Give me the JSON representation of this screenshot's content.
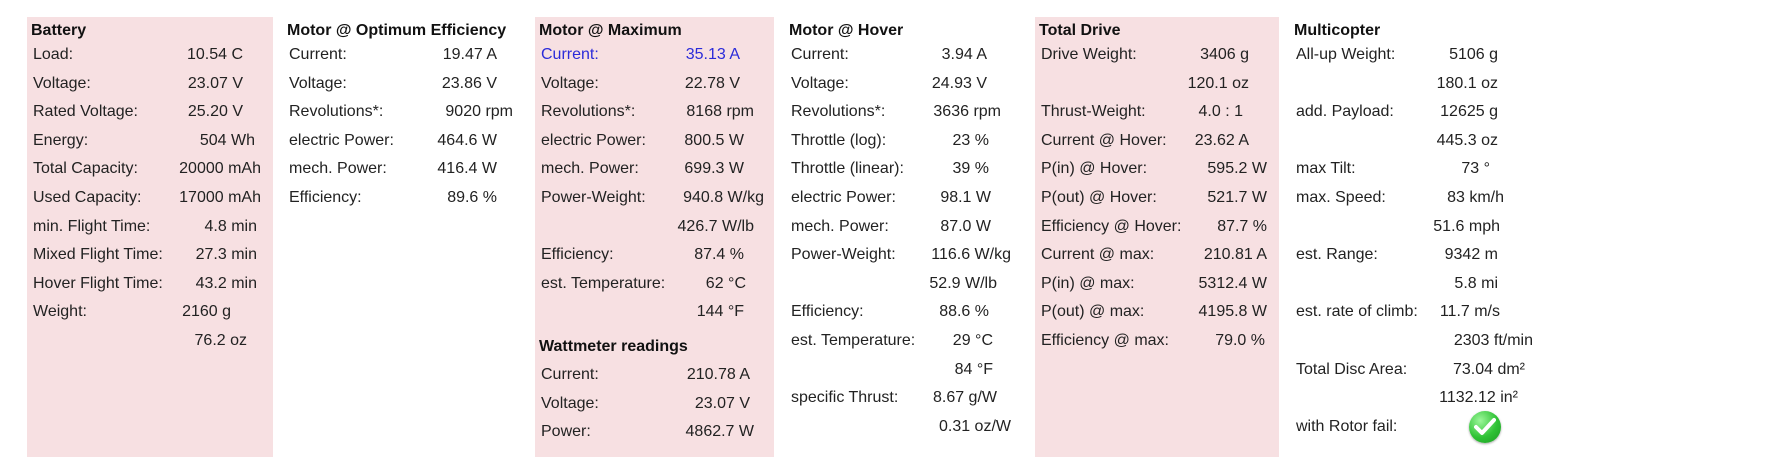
{
  "battery": {
    "title": "Battery",
    "rows": [
      {
        "label": "Load:",
        "value": "10.54 C"
      },
      {
        "label": "Voltage:",
        "value": "23.07 V"
      },
      {
        "label": "Rated Voltage:",
        "value": "25.20 V"
      },
      {
        "label": "Energy:",
        "value": "504 Wh"
      },
      {
        "label": "Total Capacity:",
        "value": "20000 mAh"
      },
      {
        "label": "Used Capacity:",
        "value": "17000 mAh"
      },
      {
        "label": "min. Flight Time:",
        "value": "4.8 min"
      },
      {
        "label": "Mixed Flight Time:",
        "value": "27.3 min"
      },
      {
        "label": "Hover Flight Time:",
        "value": "43.2 min"
      },
      {
        "label": "Weight:",
        "value": "2160 g"
      },
      {
        "label": "",
        "value": "76.2 oz"
      }
    ]
  },
  "motor_optimum": {
    "title": "Motor @ Optimum Efficiency",
    "rows": [
      {
        "label": "Current:",
        "value": "19.47 A"
      },
      {
        "label": "Voltage:",
        "value": "23.86 V"
      },
      {
        "label": "Revolutions*:",
        "value": "9020 rpm"
      },
      {
        "label": "electric Power:",
        "value": "464.6 W"
      },
      {
        "label": "mech. Power:",
        "value": "416.4 W"
      },
      {
        "label": "Efficiency:",
        "value": "89.6 %"
      }
    ]
  },
  "motor_maximum": {
    "title": "Motor @ Maximum",
    "rows": [
      {
        "label": "Current:",
        "value": "35.13 A"
      },
      {
        "label": "Voltage:",
        "value": "22.78 V"
      },
      {
        "label": "Revolutions*:",
        "value": "8168 rpm"
      },
      {
        "label": "electric Power:",
        "value": "800.5 W"
      },
      {
        "label": "mech. Power:",
        "value": "699.3 W"
      },
      {
        "label": "Power-Weight:",
        "value": "940.8 W/kg"
      },
      {
        "label": "",
        "value": "426.7 W/lb"
      },
      {
        "label": "Efficiency:",
        "value": "87.4 %"
      },
      {
        "label": "est. Temperature:",
        "value": "62 °C"
      },
      {
        "label": "",
        "value": "144 °F"
      }
    ],
    "wattmeter": {
      "title": "Wattmeter readings",
      "rows": [
        {
          "label": "Current:",
          "value": "210.78 A"
        },
        {
          "label": "Voltage:",
          "value": "23.07 V"
        },
        {
          "label": "Power:",
          "value": "4862.7 W"
        }
      ]
    }
  },
  "motor_hover": {
    "title": "Motor @ Hover",
    "rows": [
      {
        "label": "Current:",
        "value": "3.94 A"
      },
      {
        "label": "Voltage:",
        "value": "24.93 V"
      },
      {
        "label": "Revolutions*:",
        "value": "3636 rpm"
      },
      {
        "label": "Throttle (log):",
        "value": "23 %"
      },
      {
        "label": "Throttle (linear):",
        "value": "39 %"
      },
      {
        "label": "electric Power:",
        "value": "98.1 W"
      },
      {
        "label": "mech. Power:",
        "value": "87.0 W"
      },
      {
        "label": "Power-Weight:",
        "value": "116.6 W/kg"
      },
      {
        "label": "",
        "value": "52.9 W/lb"
      },
      {
        "label": "Efficiency:",
        "value": "88.6 %"
      },
      {
        "label": "est. Temperature:",
        "value": "29 °C"
      },
      {
        "label": "",
        "value": "84 °F"
      },
      {
        "label": "specific Thrust:",
        "value": "8.67 g/W"
      },
      {
        "label": "",
        "value": "0.31 oz/W"
      }
    ]
  },
  "total_drive": {
    "title": "Total Drive",
    "rows": [
      {
        "label": "Drive Weight:",
        "value": "3406 g"
      },
      {
        "label": "",
        "value": "120.1 oz"
      },
      {
        "label": "Thrust-Weight:",
        "value": "4.0 : 1"
      },
      {
        "label": "Current @ Hover:",
        "value": "23.62 A"
      },
      {
        "label": "P(in) @ Hover:",
        "value": "595.2 W"
      },
      {
        "label": "P(out) @ Hover:",
        "value": "521.7 W"
      },
      {
        "label": "Efficiency @ Hover:",
        "value": "87.7 %"
      },
      {
        "label": "Current @ max:",
        "value": "210.81 A"
      },
      {
        "label": "P(in) @ max:",
        "value": "5312.4 W"
      },
      {
        "label": "P(out) @ max:",
        "value": "4195.8 W"
      },
      {
        "label": "Efficiency @ max:",
        "value": "79.0 %"
      }
    ]
  },
  "multicopter": {
    "title": "Multicopter",
    "rows": [
      {
        "label": "All-up Weight:",
        "value": "5106 g"
      },
      {
        "label": "",
        "value": "180.1 oz"
      },
      {
        "label": "add. Payload:",
        "value": "12625 g"
      },
      {
        "label": "",
        "value": "445.3 oz"
      },
      {
        "label": "max Tilt:",
        "value": "73 °"
      },
      {
        "label": "max. Speed:",
        "value": "83 km/h"
      },
      {
        "label": "",
        "value": "51.6 mph"
      },
      {
        "label": "est. Range:",
        "value": "9342 m"
      },
      {
        "label": "",
        "value": "5.8 mi"
      },
      {
        "label": "est. rate of climb:",
        "value": "11.7 m/s"
      },
      {
        "label": "",
        "value": "2303 ft/min"
      },
      {
        "label": "Total Disc Area:",
        "value": "73.04 dm²"
      },
      {
        "label": "",
        "value": "1132.12 in²"
      },
      {
        "label": "with Rotor fail:",
        "value": ""
      }
    ],
    "rotor_fail_icon": "green-check-icon"
  },
  "colors": {
    "panel_pink": "#f7e0e2",
    "highlight_blue": "#2b2bd9",
    "check_green": "#2fc235"
  }
}
